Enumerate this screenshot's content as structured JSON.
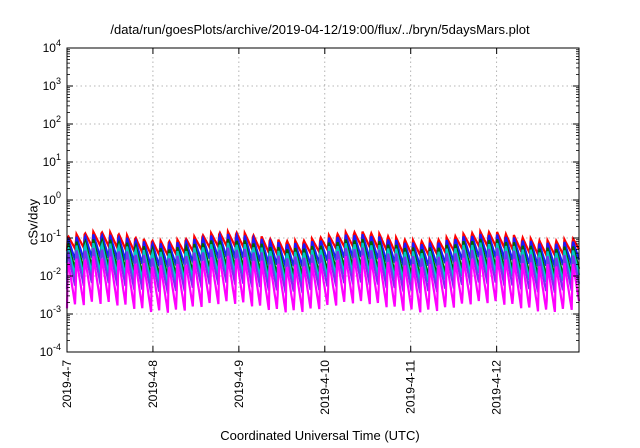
{
  "chart_data": {
    "type": "line",
    "title": "/data/run/goesPlots/archive/2019-04-12/19:00/flux/../bryn/5daysMars.plot",
    "xlabel": "Coordinated Universal Time (UTC)",
    "ylabel": "cSv/day",
    "y_scale": "log",
    "ylim": [
      0.0001,
      10000
    ],
    "xlim": [
      "2019-04-07 00:00",
      "2019-04-12 23:00"
    ],
    "x_tick_labels": [
      "2019-4-7",
      "2019-4-8",
      "2019-4-9",
      "2019-4-10",
      "2019-4-11",
      "2019-4-12"
    ],
    "y_ticks": [
      {
        "base": "10",
        "exp": "-4"
      },
      {
        "base": "10",
        "exp": "-3"
      },
      {
        "base": "10",
        "exp": "-2"
      },
      {
        "base": "10",
        "exp": "-1"
      },
      {
        "base": "10",
        "exp": "0"
      },
      {
        "base": "10",
        "exp": "1"
      },
      {
        "base": "10",
        "exp": "2"
      },
      {
        "base": "10",
        "exp": "3"
      },
      {
        "base": "10",
        "exp": "4"
      }
    ],
    "grid": true,
    "legend": "none",
    "cycle_period_hours": 2.35,
    "series_style": "sawtooth (sharp rise, exponential decay)",
    "series": [
      {
        "color": "#ff0000",
        "peak": 0.115,
        "trough": 0.045
      },
      {
        "color": "#1a1aff",
        "peak": 0.1,
        "trough": 0.022
      },
      {
        "color": "#006400",
        "peak": 0.075,
        "trough": 0.012
      },
      {
        "color": "#00c8c8",
        "peak": 0.06,
        "trough": 0.008
      },
      {
        "color": "#7b2ff0",
        "peak": 0.045,
        "trough": 0.0045
      },
      {
        "color": "#ff00ff",
        "peak": 0.028,
        "trough": 0.0014
      }
    ]
  }
}
